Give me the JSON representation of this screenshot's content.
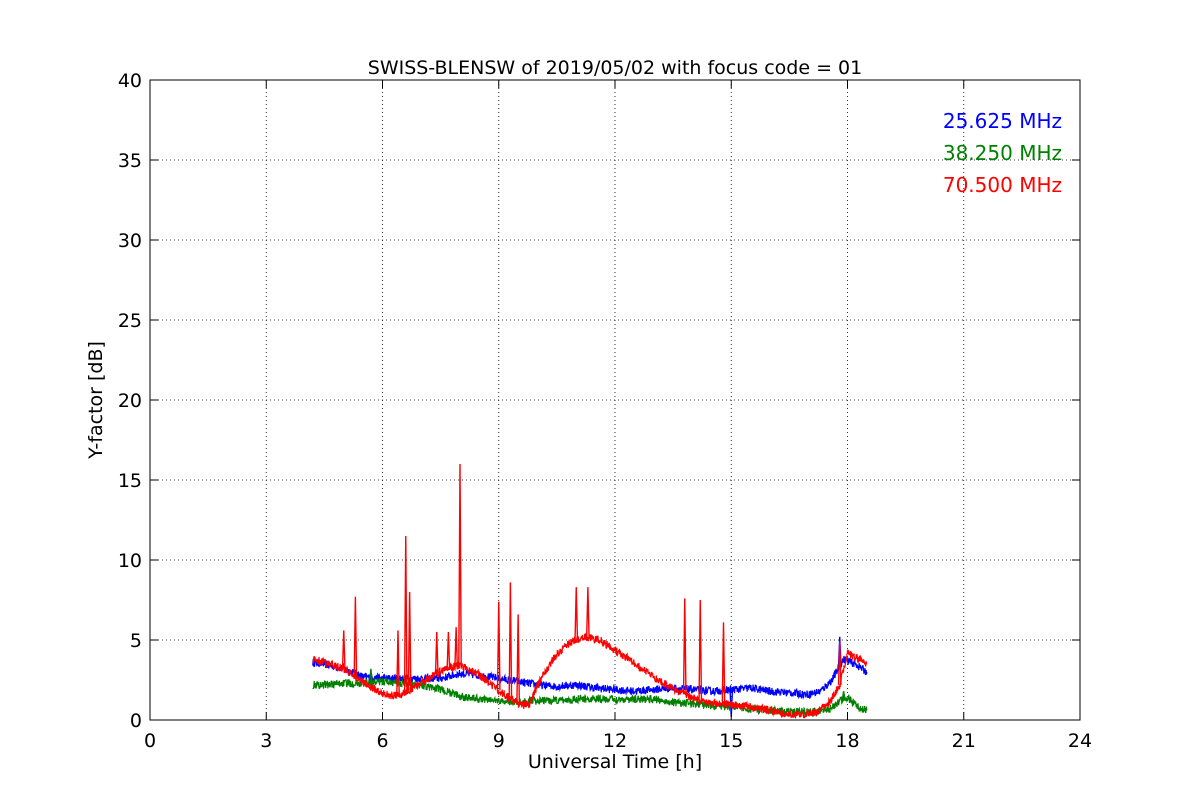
{
  "chart_data": {
    "type": "line",
    "title": "SWISS-BLENSW of 2019/05/02 with focus code = 01",
    "xlabel": "Universal Time [h]",
    "ylabel": "Y-factor [dB]",
    "xlim": [
      0,
      24
    ],
    "ylim": [
      0,
      40
    ],
    "xticks": [
      0,
      3,
      6,
      9,
      12,
      15,
      18,
      21,
      24
    ],
    "yticks": [
      0,
      5,
      10,
      15,
      20,
      25,
      30,
      35,
      40
    ],
    "grid": true,
    "legend_position": "top-right",
    "series": [
      {
        "name": "25.625 MHz",
        "color": "#0000ff",
        "x": [
          4.2,
          4.5,
          5.0,
          5.5,
          6.0,
          6.5,
          7.0,
          7.5,
          8.0,
          8.5,
          9.0,
          9.5,
          10.0,
          10.5,
          11.0,
          11.5,
          12.0,
          12.5,
          13.0,
          13.5,
          14.0,
          14.5,
          15.0,
          15.5,
          16.0,
          16.5,
          17.0,
          17.3,
          17.6,
          17.9,
          18.2,
          18.5
        ],
        "y": [
          3.6,
          3.5,
          3.2,
          2.7,
          2.6,
          2.6,
          2.6,
          2.6,
          2.9,
          2.8,
          2.6,
          2.4,
          2.2,
          2.1,
          2.2,
          2.0,
          1.9,
          1.8,
          1.9,
          2.0,
          1.9,
          1.8,
          1.9,
          2.0,
          1.8,
          1.7,
          1.6,
          1.8,
          2.5,
          3.8,
          3.5,
          3.0
        ],
        "spikes": [
          [
            17.8,
            5.2
          ],
          [
            15.0,
            0.2
          ]
        ]
      },
      {
        "name": "38.250 MHz",
        "color": "#008000",
        "x": [
          4.2,
          4.5,
          5.0,
          5.5,
          6.0,
          6.5,
          7.0,
          7.5,
          8.0,
          8.5,
          9.0,
          9.5,
          10.0,
          10.5,
          11.0,
          11.5,
          12.0,
          12.5,
          13.0,
          13.5,
          14.0,
          14.5,
          15.0,
          15.5,
          16.0,
          16.5,
          17.0,
          17.5,
          17.8,
          18.0,
          18.3,
          18.5
        ],
        "y": [
          2.2,
          2.2,
          2.3,
          2.3,
          2.4,
          2.3,
          2.2,
          1.9,
          1.5,
          1.3,
          1.2,
          1.1,
          1.2,
          1.2,
          1.3,
          1.3,
          1.3,
          1.3,
          1.3,
          1.1,
          1.0,
          0.9,
          0.9,
          0.7,
          0.6,
          0.5,
          0.5,
          0.6,
          1.2,
          1.4,
          0.8,
          0.6
        ],
        "spikes": [
          [
            5.7,
            3.2
          ],
          [
            17.9,
            1.8
          ]
        ]
      },
      {
        "name": "70.500 MHz",
        "color": "#ff0000",
        "x": [
          4.2,
          4.5,
          5.0,
          5.4,
          5.8,
          6.2,
          6.5,
          6.8,
          7.2,
          7.6,
          8.0,
          8.4,
          8.8,
          9.2,
          9.6,
          9.8,
          10.0,
          10.4,
          10.8,
          11.2,
          11.6,
          12.0,
          12.4,
          12.8,
          13.2,
          13.6,
          14.0,
          14.4,
          14.8,
          15.2,
          15.6,
          16.0,
          16.4,
          16.8,
          17.2,
          17.5,
          17.8,
          18.0,
          18.3,
          18.5
        ],
        "y": [
          3.8,
          3.6,
          3.2,
          2.5,
          1.9,
          1.5,
          1.6,
          2.0,
          2.6,
          3.2,
          3.4,
          3.0,
          2.2,
          1.5,
          0.9,
          1.0,
          2.2,
          3.8,
          4.8,
          5.2,
          5.0,
          4.4,
          3.7,
          3.0,
          2.4,
          1.8,
          1.4,
          1.1,
          1.0,
          0.9,
          0.8,
          0.6,
          0.4,
          0.3,
          0.5,
          1.0,
          2.2,
          4.2,
          3.8,
          3.5
        ],
        "spikes": [
          [
            5.0,
            5.6
          ],
          [
            5.3,
            7.7
          ],
          [
            6.4,
            5.6
          ],
          [
            6.6,
            11.5
          ],
          [
            6.7,
            8.0
          ],
          [
            7.4,
            5.5
          ],
          [
            7.7,
            5.5
          ],
          [
            7.9,
            5.8
          ],
          [
            8.0,
            16.0
          ],
          [
            9.0,
            7.4
          ],
          [
            9.3,
            8.6
          ],
          [
            9.5,
            6.6
          ],
          [
            11.0,
            8.3
          ],
          [
            11.3,
            8.3
          ],
          [
            13.8,
            7.6
          ],
          [
            14.2,
            7.5
          ],
          [
            14.8,
            6.1
          ],
          [
            17.8,
            4.9
          ]
        ]
      }
    ]
  }
}
